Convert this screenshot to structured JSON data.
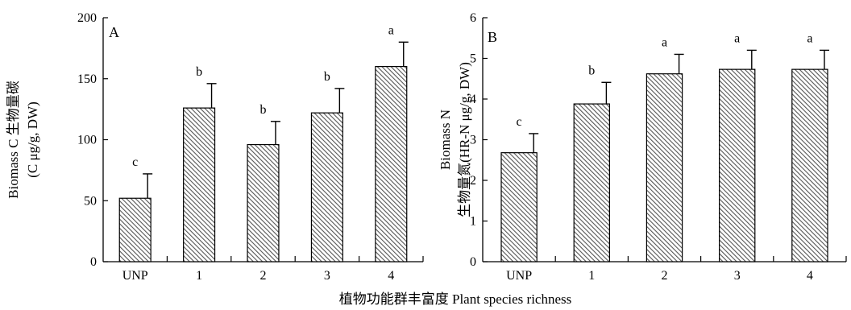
{
  "figure": {
    "shared_xlabel": "植物功能群丰富度 Plant species richness"
  },
  "chart_data": [
    {
      "type": "bar",
      "panel_label": "A",
      "categories": [
        "UNP",
        "1",
        "2",
        "3",
        "4"
      ],
      "values": [
        52,
        126,
        96,
        122,
        160
      ],
      "errors": [
        20,
        20,
        19,
        20,
        20
      ],
      "significance": [
        "c",
        "b",
        "b",
        "b",
        "a"
      ],
      "ylabel_lines": [
        "Biomass C 生物量碳",
        "(C μg/g, DW)"
      ],
      "ylim": [
        0,
        200
      ],
      "yticks": [
        0,
        50,
        100,
        150,
        200
      ],
      "bar_fill": "hatched",
      "grid": false
    },
    {
      "type": "bar",
      "panel_label": "B",
      "categories": [
        "UNP",
        "1",
        "2",
        "3",
        "4"
      ],
      "values": [
        2.68,
        3.88,
        4.62,
        4.73,
        4.73
      ],
      "errors": [
        0.47,
        0.53,
        0.48,
        0.47,
        0.47
      ],
      "significance": [
        "c",
        "b",
        "a",
        "a",
        "a"
      ],
      "ylabel_lines": [
        "Biomass N",
        "生物量氮(HR-N μg/g, DW)"
      ],
      "ylim": [
        0,
        6
      ],
      "yticks": [
        0,
        1,
        2,
        3,
        4,
        5,
        6
      ],
      "bar_fill": "hatched",
      "grid": false
    }
  ]
}
